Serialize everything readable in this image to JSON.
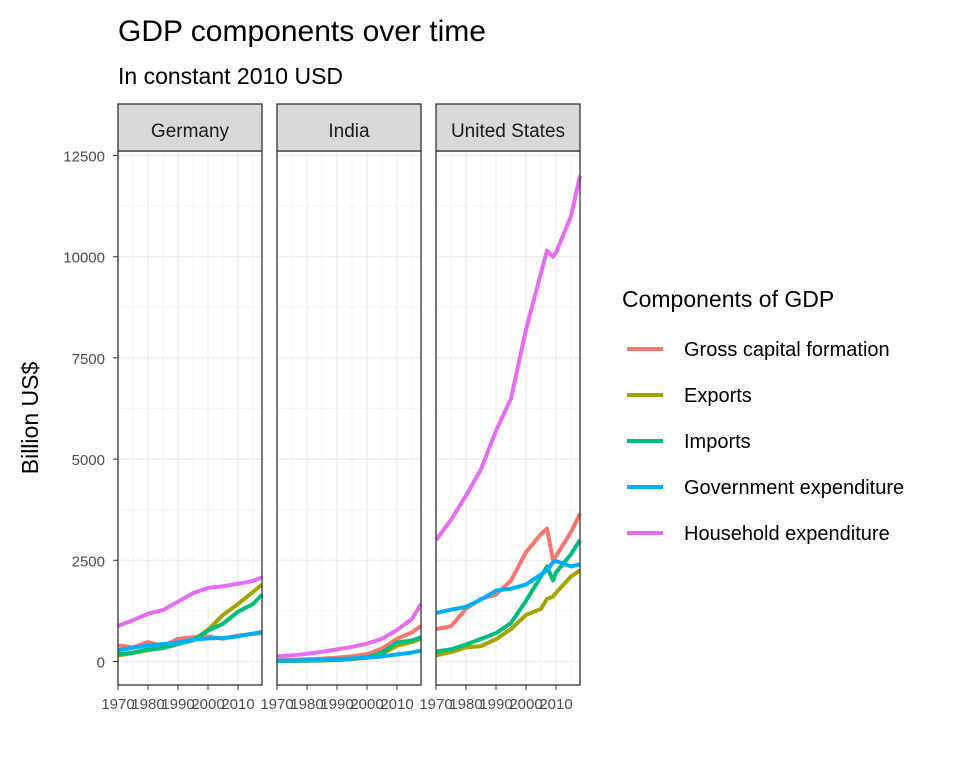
{
  "chart_data": {
    "type": "line",
    "title": "GDP components over time",
    "subtitle": "In constant 2010 USD",
    "ylabel": "Billion US$",
    "xlabel": "",
    "xlim": [
      1970,
      2018
    ],
    "ylim": [
      -600,
      13500
    ],
    "x_ticks": [
      1970,
      1980,
      1990,
      2000,
      2010
    ],
    "x_tick_labels": [
      "1970",
      "1980",
      "1990",
      "2000",
      "2010"
    ],
    "y_ticks": [
      0,
      2500,
      5000,
      7500,
      10000,
      12500
    ],
    "y_tick_labels": [
      "0",
      "2500",
      "5000",
      "7500",
      "10000",
      "12500"
    ],
    "grid": true,
    "legend": {
      "title": "Components of GDP",
      "position": "right",
      "items": [
        {
          "label": "Gross capital formation",
          "color": "#F8766D"
        },
        {
          "label": "Exports",
          "color": "#A3A500"
        },
        {
          "label": "Imports",
          "color": "#00BF7D"
        },
        {
          "label": "Government expenditure",
          "color": "#00B0F6"
        },
        {
          "label": "Household expenditure",
          "color": "#E76BF3"
        }
      ]
    },
    "panels": [
      {
        "name": "Germany",
        "series": [
          {
            "name": "Gross capital formation",
            "x": [
              1970,
              1975,
              1980,
              1985,
              1990,
              1995,
              2000,
              2005,
              2010,
              2015,
              2018
            ],
            "values": [
              400,
              350,
              480,
              380,
              560,
              600,
              620,
              560,
              640,
              680,
              700
            ]
          },
          {
            "name": "Exports",
            "x": [
              1970,
              1975,
              1980,
              1985,
              1990,
              1995,
              2000,
              2005,
              2010,
              2015,
              2018
            ],
            "values": [
              150,
              210,
              280,
              340,
              430,
              520,
              780,
              1150,
              1420,
              1720,
              1900
            ]
          },
          {
            "name": "Imports",
            "x": [
              1970,
              1975,
              1980,
              1985,
              1990,
              1995,
              2000,
              2005,
              2010,
              2015,
              2018
            ],
            "values": [
              180,
              220,
              300,
              330,
              430,
              530,
              760,
              930,
              1230,
              1420,
              1650
            ]
          },
          {
            "name": "Government expenditure",
            "x": [
              1970,
              1975,
              1980,
              1985,
              1990,
              1995,
              2000,
              2005,
              2010,
              2015,
              2018
            ],
            "values": [
              280,
              340,
              400,
              430,
              470,
              540,
              570,
              580,
              620,
              690,
              730
            ]
          },
          {
            "name": "Household expenditure",
            "x": [
              1970,
              1975,
              1980,
              1985,
              1990,
              1995,
              2000,
              2005,
              2010,
              2015,
              2018
            ],
            "values": [
              880,
              1020,
              1180,
              1270,
              1480,
              1690,
              1820,
              1860,
              1920,
              1990,
              2080
            ]
          }
        ]
      },
      {
        "name": "India",
        "series": [
          {
            "name": "Gross capital formation",
            "x": [
              1970,
              1975,
              1980,
              1985,
              1990,
              1995,
              2000,
              2005,
              2010,
              2015,
              2018
            ],
            "values": [
              30,
              40,
              55,
              70,
              95,
              130,
              180,
              320,
              560,
              720,
              880
            ]
          },
          {
            "name": "Exports",
            "x": [
              1970,
              1975,
              1980,
              1985,
              1990,
              1995,
              2000,
              2005,
              2010,
              2015,
              2018
            ],
            "values": [
              10,
              15,
              20,
              25,
              35,
              60,
              90,
              190,
              390,
              480,
              560
            ]
          },
          {
            "name": "Imports",
            "x": [
              1970,
              1975,
              1980,
              1985,
              1990,
              1995,
              2000,
              2005,
              2010,
              2015,
              2018
            ],
            "values": [
              15,
              18,
              25,
              30,
              40,
              70,
              100,
              220,
              470,
              520,
              600
            ]
          },
          {
            "name": "Government expenditure",
            "x": [
              1970,
              1975,
              1980,
              1985,
              1990,
              1995,
              2000,
              2005,
              2010,
              2015,
              2018
            ],
            "values": [
              20,
              25,
              35,
              45,
              60,
              75,
              95,
              125,
              175,
              220,
              270
            ]
          },
          {
            "name": "Household expenditure",
            "x": [
              1970,
              1975,
              1980,
              1985,
              1990,
              1995,
              2000,
              2005,
              2010,
              2015,
              2018
            ],
            "values": [
              130,
              150,
              190,
              240,
              300,
              360,
              440,
              560,
              780,
              1050,
              1420
            ]
          }
        ]
      },
      {
        "name": "United States",
        "series": [
          {
            "name": "Gross capital formation",
            "x": [
              1970,
              1975,
              1980,
              1985,
              1990,
              1995,
              2000,
              2005,
              2007,
              2009,
              2010,
              2015,
              2018
            ],
            "values": [
              800,
              870,
              1300,
              1550,
              1650,
              2000,
              2700,
              3150,
              3280,
              2500,
              2600,
              3200,
              3650
            ]
          },
          {
            "name": "Exports",
            "x": [
              1970,
              1975,
              1980,
              1985,
              1990,
              1995,
              2000,
              2005,
              2007,
              2009,
              2010,
              2015,
              2018
            ],
            "values": [
              150,
              230,
              350,
              380,
              550,
              800,
              1150,
              1300,
              1550,
              1600,
              1700,
              2100,
              2250
            ]
          },
          {
            "name": "Imports",
            "x": [
              1970,
              1975,
              1980,
              1985,
              1990,
              1995,
              2000,
              2005,
              2007,
              2009,
              2010,
              2015,
              2018
            ],
            "values": [
              250,
              300,
              420,
              560,
              700,
              950,
              1500,
              2100,
              2350,
              2000,
              2200,
              2650,
              3000
            ]
          },
          {
            "name": "Government expenditure",
            "x": [
              1970,
              1975,
              1980,
              1985,
              1990,
              1995,
              2000,
              2005,
              2007,
              2009,
              2010,
              2015,
              2018
            ],
            "values": [
              1200,
              1280,
              1350,
              1530,
              1750,
              1800,
              1900,
              2150,
              2250,
              2450,
              2480,
              2350,
              2400
            ]
          },
          {
            "name": "Household expenditure",
            "x": [
              1970,
              1975,
              1980,
              1985,
              1990,
              1995,
              2000,
              2005,
              2007,
              2009,
              2010,
              2015,
              2018
            ],
            "values": [
              3000,
              3500,
              4100,
              4750,
              5700,
              6500,
              8200,
              9600,
              10150,
              10000,
              10100,
              11000,
              12000
            ]
          }
        ]
      }
    ]
  }
}
